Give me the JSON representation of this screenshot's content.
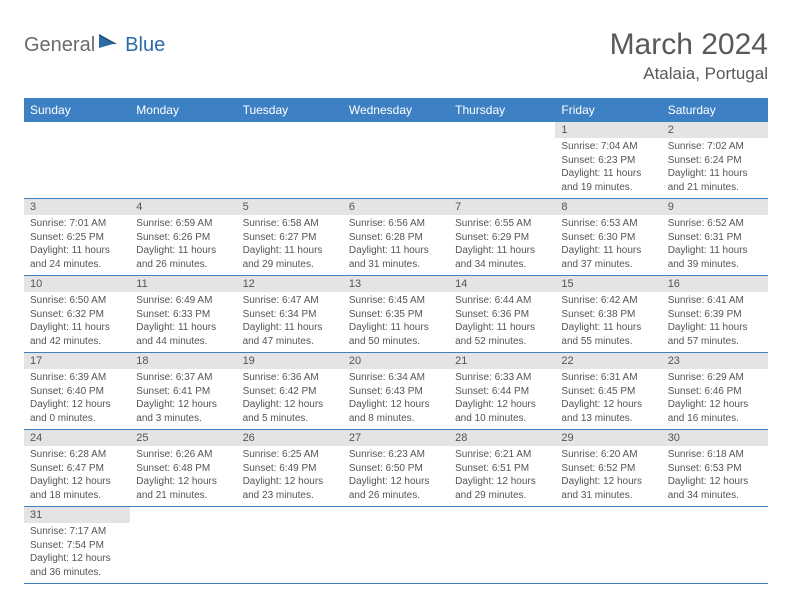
{
  "brand": {
    "part1": "General",
    "part2": "Blue"
  },
  "title": "March 2024",
  "location": "Atalaia, Portugal",
  "colors": {
    "header_bg": "#3d80c4",
    "header_text": "#ffffff",
    "daynum_bg": "#e4e4e4",
    "text": "#555555",
    "row_border": "#3d80c4",
    "brand_gray": "#6b6b6b",
    "brand_blue": "#2d6aa8"
  },
  "day_headers": [
    "Sunday",
    "Monday",
    "Tuesday",
    "Wednesday",
    "Thursday",
    "Friday",
    "Saturday"
  ],
  "weeks": [
    [
      null,
      null,
      null,
      null,
      null,
      {
        "n": "1",
        "sr": "Sunrise: 7:04 AM",
        "ss": "Sunset: 6:23 PM",
        "dl": "Daylight: 11 hours and 19 minutes."
      },
      {
        "n": "2",
        "sr": "Sunrise: 7:02 AM",
        "ss": "Sunset: 6:24 PM",
        "dl": "Daylight: 11 hours and 21 minutes."
      }
    ],
    [
      {
        "n": "3",
        "sr": "Sunrise: 7:01 AM",
        "ss": "Sunset: 6:25 PM",
        "dl": "Daylight: 11 hours and 24 minutes."
      },
      {
        "n": "4",
        "sr": "Sunrise: 6:59 AM",
        "ss": "Sunset: 6:26 PM",
        "dl": "Daylight: 11 hours and 26 minutes."
      },
      {
        "n": "5",
        "sr": "Sunrise: 6:58 AM",
        "ss": "Sunset: 6:27 PM",
        "dl": "Daylight: 11 hours and 29 minutes."
      },
      {
        "n": "6",
        "sr": "Sunrise: 6:56 AM",
        "ss": "Sunset: 6:28 PM",
        "dl": "Daylight: 11 hours and 31 minutes."
      },
      {
        "n": "7",
        "sr": "Sunrise: 6:55 AM",
        "ss": "Sunset: 6:29 PM",
        "dl": "Daylight: 11 hours and 34 minutes."
      },
      {
        "n": "8",
        "sr": "Sunrise: 6:53 AM",
        "ss": "Sunset: 6:30 PM",
        "dl": "Daylight: 11 hours and 37 minutes."
      },
      {
        "n": "9",
        "sr": "Sunrise: 6:52 AM",
        "ss": "Sunset: 6:31 PM",
        "dl": "Daylight: 11 hours and 39 minutes."
      }
    ],
    [
      {
        "n": "10",
        "sr": "Sunrise: 6:50 AM",
        "ss": "Sunset: 6:32 PM",
        "dl": "Daylight: 11 hours and 42 minutes."
      },
      {
        "n": "11",
        "sr": "Sunrise: 6:49 AM",
        "ss": "Sunset: 6:33 PM",
        "dl": "Daylight: 11 hours and 44 minutes."
      },
      {
        "n": "12",
        "sr": "Sunrise: 6:47 AM",
        "ss": "Sunset: 6:34 PM",
        "dl": "Daylight: 11 hours and 47 minutes."
      },
      {
        "n": "13",
        "sr": "Sunrise: 6:45 AM",
        "ss": "Sunset: 6:35 PM",
        "dl": "Daylight: 11 hours and 50 minutes."
      },
      {
        "n": "14",
        "sr": "Sunrise: 6:44 AM",
        "ss": "Sunset: 6:36 PM",
        "dl": "Daylight: 11 hours and 52 minutes."
      },
      {
        "n": "15",
        "sr": "Sunrise: 6:42 AM",
        "ss": "Sunset: 6:38 PM",
        "dl": "Daylight: 11 hours and 55 minutes."
      },
      {
        "n": "16",
        "sr": "Sunrise: 6:41 AM",
        "ss": "Sunset: 6:39 PM",
        "dl": "Daylight: 11 hours and 57 minutes."
      }
    ],
    [
      {
        "n": "17",
        "sr": "Sunrise: 6:39 AM",
        "ss": "Sunset: 6:40 PM",
        "dl": "Daylight: 12 hours and 0 minutes."
      },
      {
        "n": "18",
        "sr": "Sunrise: 6:37 AM",
        "ss": "Sunset: 6:41 PM",
        "dl": "Daylight: 12 hours and 3 minutes."
      },
      {
        "n": "19",
        "sr": "Sunrise: 6:36 AM",
        "ss": "Sunset: 6:42 PM",
        "dl": "Daylight: 12 hours and 5 minutes."
      },
      {
        "n": "20",
        "sr": "Sunrise: 6:34 AM",
        "ss": "Sunset: 6:43 PM",
        "dl": "Daylight: 12 hours and 8 minutes."
      },
      {
        "n": "21",
        "sr": "Sunrise: 6:33 AM",
        "ss": "Sunset: 6:44 PM",
        "dl": "Daylight: 12 hours and 10 minutes."
      },
      {
        "n": "22",
        "sr": "Sunrise: 6:31 AM",
        "ss": "Sunset: 6:45 PM",
        "dl": "Daylight: 12 hours and 13 minutes."
      },
      {
        "n": "23",
        "sr": "Sunrise: 6:29 AM",
        "ss": "Sunset: 6:46 PM",
        "dl": "Daylight: 12 hours and 16 minutes."
      }
    ],
    [
      {
        "n": "24",
        "sr": "Sunrise: 6:28 AM",
        "ss": "Sunset: 6:47 PM",
        "dl": "Daylight: 12 hours and 18 minutes."
      },
      {
        "n": "25",
        "sr": "Sunrise: 6:26 AM",
        "ss": "Sunset: 6:48 PM",
        "dl": "Daylight: 12 hours and 21 minutes."
      },
      {
        "n": "26",
        "sr": "Sunrise: 6:25 AM",
        "ss": "Sunset: 6:49 PM",
        "dl": "Daylight: 12 hours and 23 minutes."
      },
      {
        "n": "27",
        "sr": "Sunrise: 6:23 AM",
        "ss": "Sunset: 6:50 PM",
        "dl": "Daylight: 12 hours and 26 minutes."
      },
      {
        "n": "28",
        "sr": "Sunrise: 6:21 AM",
        "ss": "Sunset: 6:51 PM",
        "dl": "Daylight: 12 hours and 29 minutes."
      },
      {
        "n": "29",
        "sr": "Sunrise: 6:20 AM",
        "ss": "Sunset: 6:52 PM",
        "dl": "Daylight: 12 hours and 31 minutes."
      },
      {
        "n": "30",
        "sr": "Sunrise: 6:18 AM",
        "ss": "Sunset: 6:53 PM",
        "dl": "Daylight: 12 hours and 34 minutes."
      }
    ],
    [
      {
        "n": "31",
        "sr": "Sunrise: 7:17 AM",
        "ss": "Sunset: 7:54 PM",
        "dl": "Daylight: 12 hours and 36 minutes."
      },
      null,
      null,
      null,
      null,
      null,
      null
    ]
  ]
}
